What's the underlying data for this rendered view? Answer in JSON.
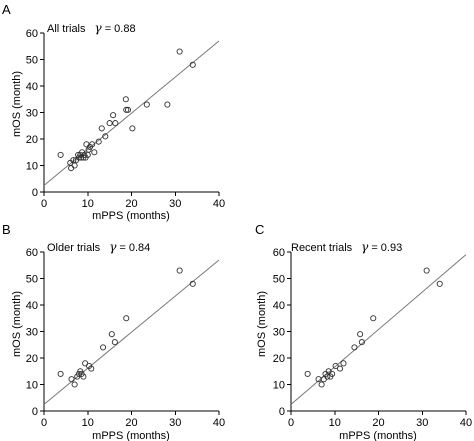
{
  "chart_data": [
    {
      "type": "scatter",
      "panel_letter": "A",
      "subset_label": "All trials",
      "stat_symbol": "γ",
      "stat_text": "= 0.88",
      "xlabel": "mPPS (months)",
      "ylabel": "mOS (month)",
      "xlim": [
        0,
        40
      ],
      "ylim": [
        0,
        60
      ],
      "xticks": [
        0,
        10,
        20,
        30,
        40
      ],
      "yticks": [
        0,
        10,
        20,
        30,
        40,
        50,
        60
      ],
      "fit_line": {
        "x": [
          0,
          40
        ],
        "y": [
          2.5,
          57
        ]
      },
      "points": [
        [
          3.8,
          14
        ],
        [
          6,
          11
        ],
        [
          6.2,
          9
        ],
        [
          6.7,
          12
        ],
        [
          7,
          10
        ],
        [
          7.3,
          12
        ],
        [
          7.8,
          14
        ],
        [
          8,
          13
        ],
        [
          8.3,
          14
        ],
        [
          8.5,
          13
        ],
        [
          8.7,
          15
        ],
        [
          9,
          13
        ],
        [
          9.2,
          14
        ],
        [
          9.5,
          13
        ],
        [
          9.7,
          18
        ],
        [
          10,
          14
        ],
        [
          10.2,
          16
        ],
        [
          10.5,
          17
        ],
        [
          11,
          18
        ],
        [
          11.5,
          15
        ],
        [
          12.5,
          19
        ],
        [
          13.2,
          24
        ],
        [
          14,
          21
        ],
        [
          15,
          26
        ],
        [
          15.8,
          29
        ],
        [
          16.3,
          26
        ],
        [
          18.7,
          35
        ],
        [
          18.8,
          31
        ],
        [
          19.2,
          31
        ],
        [
          20.2,
          24
        ],
        [
          23.5,
          33
        ],
        [
          28.2,
          33
        ],
        [
          31,
          53
        ],
        [
          34,
          48
        ]
      ]
    },
    {
      "type": "scatter",
      "panel_letter": "B",
      "subset_label": "Older trials",
      "stat_symbol": "γ",
      "stat_text": "= 0.84",
      "xlabel": "mPPS (months)",
      "ylabel": "mOS (month)",
      "xlim": [
        0,
        40
      ],
      "ylim": [
        0,
        60
      ],
      "xticks": [
        0,
        10,
        20,
        30,
        40
      ],
      "yticks": [
        0,
        10,
        20,
        30,
        40,
        50,
        60
      ],
      "fit_line": {
        "x": [
          0,
          40
        ],
        "y": [
          2.5,
          57
        ]
      },
      "points": [
        [
          3.8,
          14
        ],
        [
          6.3,
          12
        ],
        [
          7,
          10
        ],
        [
          7.6,
          13
        ],
        [
          8,
          14
        ],
        [
          8.3,
          15
        ],
        [
          8.6,
          14
        ],
        [
          9,
          13
        ],
        [
          9.4,
          18
        ],
        [
          10.3,
          17
        ],
        [
          10.8,
          16
        ],
        [
          13.5,
          24
        ],
        [
          15.5,
          29
        ],
        [
          16.2,
          26
        ],
        [
          18.8,
          35
        ],
        [
          31,
          53
        ],
        [
          34,
          48
        ]
      ]
    },
    {
      "type": "scatter",
      "panel_letter": "C",
      "subset_label": "Recent trials",
      "stat_symbol": "γ",
      "stat_text": "= 0.93",
      "xlabel": "mPPS (months)",
      "ylabel": "mOS (month)",
      "xlim": [
        0,
        40
      ],
      "ylim": [
        0,
        60
      ],
      "xticks": [
        0,
        10,
        20,
        30,
        40
      ],
      "yticks": [
        0,
        10,
        20,
        30,
        40,
        50,
        60
      ],
      "fit_line": {
        "x": [
          0,
          40
        ],
        "y": [
          2.5,
          59
        ]
      },
      "points": [
        [
          3.8,
          14
        ],
        [
          6.3,
          12
        ],
        [
          7,
          10
        ],
        [
          7.5,
          12
        ],
        [
          7.9,
          14
        ],
        [
          8.3,
          13
        ],
        [
          8.6,
          15
        ],
        [
          9,
          13
        ],
        [
          9.4,
          14
        ],
        [
          10.2,
          17
        ],
        [
          11.2,
          16
        ],
        [
          12,
          18
        ],
        [
          14.5,
          24
        ],
        [
          15.8,
          29
        ],
        [
          16.2,
          26
        ],
        [
          18.8,
          35
        ],
        [
          31,
          53
        ],
        [
          34,
          48
        ]
      ]
    }
  ]
}
